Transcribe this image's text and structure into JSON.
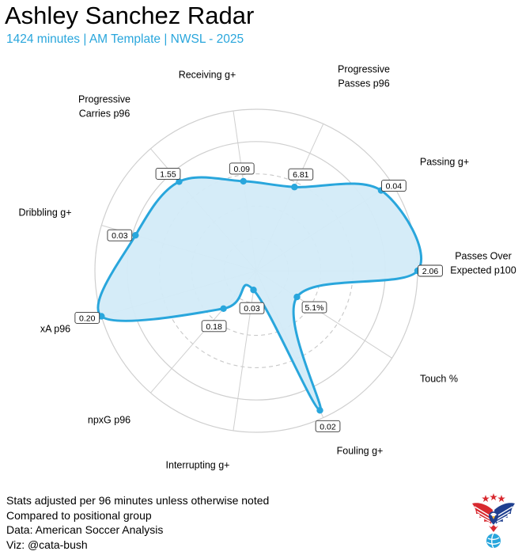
{
  "header": {
    "title": "Ashley Sanchez Radar",
    "subtitle": "1424 minutes | AM Template | NWSL - 2025"
  },
  "chart_data": {
    "type": "radar",
    "rmax": 100,
    "rings": [
      20,
      40,
      60,
      80
    ],
    "dashed_rings": [
      20,
      40,
      60
    ],
    "solid_rings": [
      80
    ],
    "grid": true,
    "fill_color": "#d3ebf8",
    "line_color": "#29a6dc",
    "axes": [
      {
        "label": [
          "Passes Over",
          "Expected p100"
        ],
        "value_label": "2.06",
        "percentile": 100
      },
      {
        "label": [
          "Touch %"
        ],
        "value_label": "5.1%",
        "percentile": 30
      },
      {
        "label": [
          "Fouling g+"
        ],
        "value_label": "0.02",
        "percentile": 95
      },
      {
        "label": [
          "Interrupting g+"
        ],
        "value_label": "0.03",
        "percentile": 12
      },
      {
        "label": [
          "npxG p96"
        ],
        "value_label": "0.18",
        "percentile": 31
      },
      {
        "label": [
          "xA p96"
        ],
        "value_label": "0.20",
        "percentile": 100
      },
      {
        "label": [
          "Dribbling g+"
        ],
        "value_label": "0.03",
        "percentile": 78
      },
      {
        "label": [
          "Progressive",
          "Carries p96"
        ],
        "value_label": "1.55",
        "percentile": 73
      },
      {
        "label": [
          "Receiving g+"
        ],
        "value_label": "0.09",
        "percentile": 56
      },
      {
        "label": [
          "Progressive",
          "Passes p96"
        ],
        "value_label": "6.81",
        "percentile": 57
      },
      {
        "label": [
          "Passing g+"
        ],
        "value_label": "0.04",
        "percentile": 92
      }
    ]
  },
  "footer": {
    "lines": [
      "Stats adjusted per 96 minutes unless otherwise noted",
      "Compared to positional group",
      "Data: American Soccer Analysis",
      "Viz: @cata-bush"
    ]
  },
  "logo": {
    "name": "eagle-soccer-logo",
    "colors": {
      "red": "#d8292f",
      "blue": "#1f3f8f",
      "light_blue": "#29a6dc"
    }
  }
}
